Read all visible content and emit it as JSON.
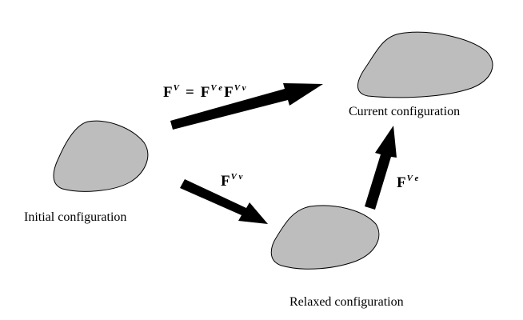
{
  "configurations": {
    "initial": {
      "label": "Initial configuration"
    },
    "relaxed": {
      "label": "Relaxed configuration"
    },
    "current": {
      "label": "Current configuration"
    }
  },
  "colors": {
    "body_fill": "#bdbdbd",
    "outline": "#000000",
    "arrow": "#000000"
  },
  "arrows": {
    "total": {
      "lhs": {
        "base": "F",
        "sup": "V"
      },
      "equals": "=",
      "rhs": [
        {
          "base": "F",
          "sup": "V e"
        },
        {
          "base": "F",
          "sup": "V v"
        }
      ]
    },
    "viscous": {
      "base": "F",
      "sup": "V v"
    },
    "elastic": {
      "base": "F",
      "sup": "V e"
    }
  }
}
